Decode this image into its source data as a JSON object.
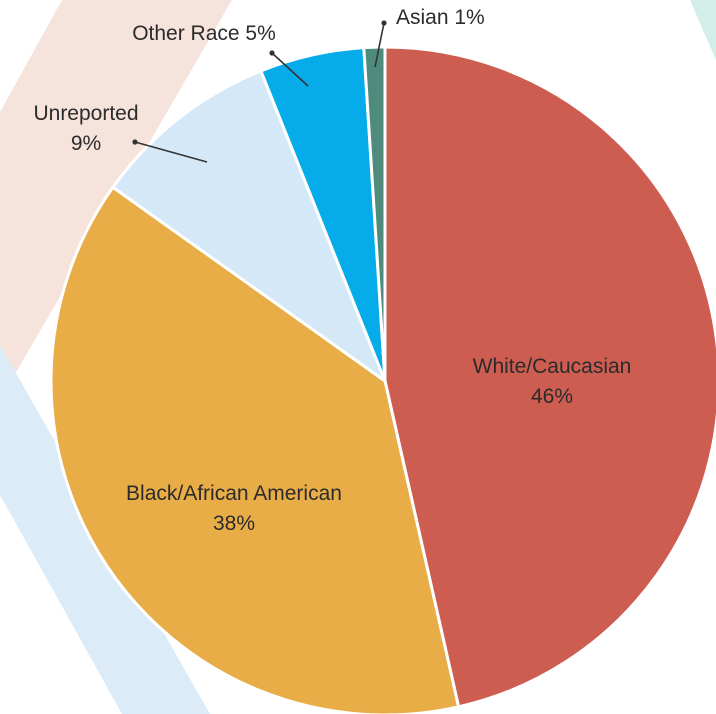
{
  "colors": {
    "background_band_warm": "#f6e3dc",
    "background_band_cool": "#dcebf8",
    "background_arc_teal": "#d3eee9"
  },
  "chart_data": {
    "type": "pie",
    "title": "",
    "slices": [
      {
        "label": "White/Caucasian",
        "value_label": "46%",
        "value": 46,
        "color": "#cd5c51",
        "label_position": "inside"
      },
      {
        "label": "Black/African American",
        "value_label": "38%",
        "value": 38,
        "color": "#e8ad47",
        "label_position": "inside"
      },
      {
        "label": "Unreported",
        "value_label": "9%",
        "value": 9,
        "color": "#d5e8f8",
        "label_position": "outside"
      },
      {
        "label": "Other Race",
        "value_label": "5%",
        "value": 5,
        "color": "#06abe9",
        "label_position": "outside"
      },
      {
        "label": "Asian",
        "value_label": "1%",
        "value": 1,
        "color": "#4e8b7c",
        "label_position": "outside"
      }
    ]
  }
}
